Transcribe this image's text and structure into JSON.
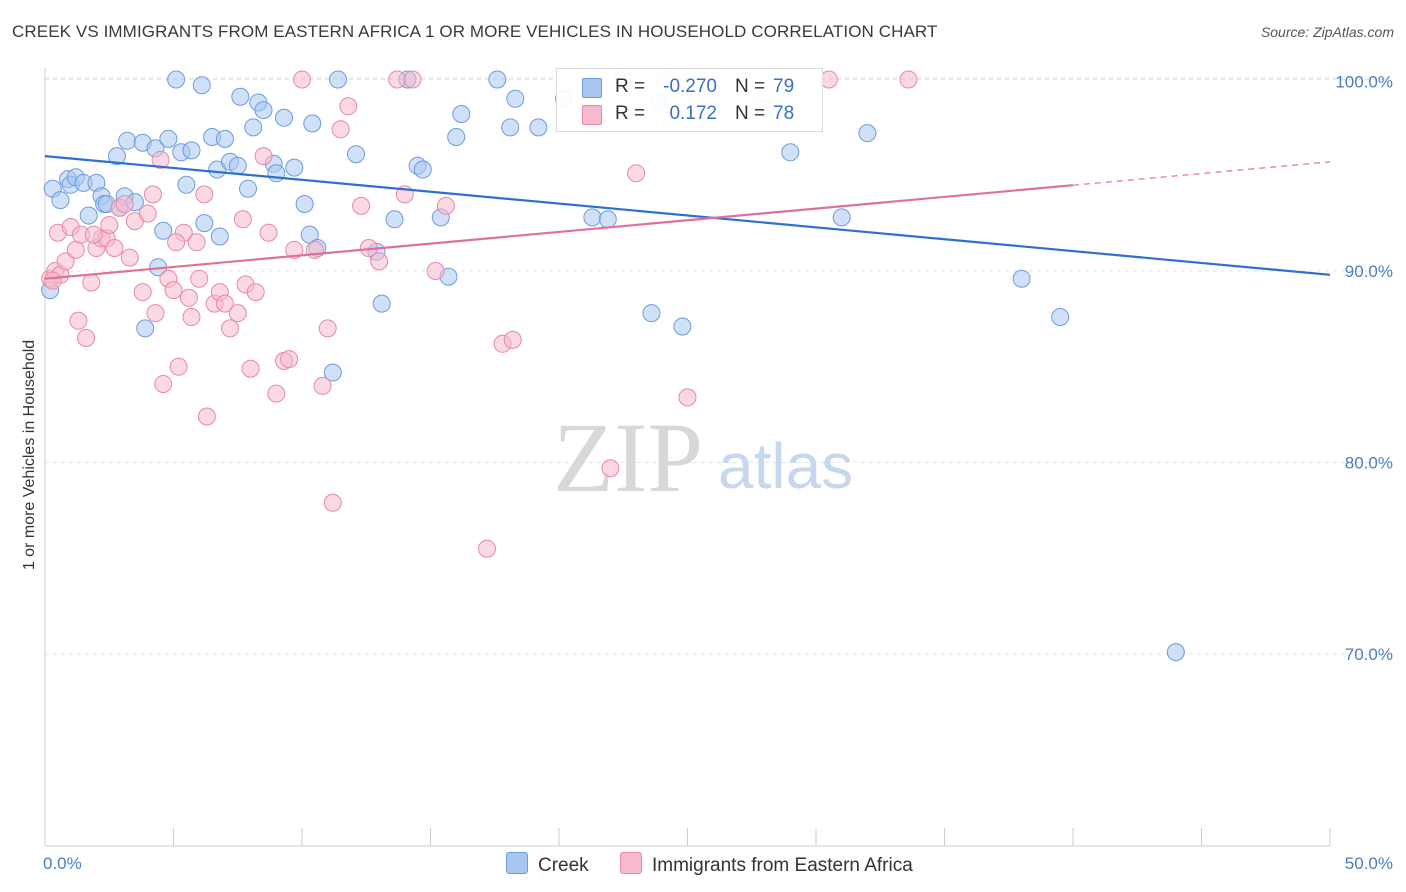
{
  "title": "CREEK VS IMMIGRANTS FROM EASTERN AFRICA 1 OR MORE VEHICLES IN HOUSEHOLD CORRELATION CHART",
  "source": "Source: ZipAtlas.com",
  "watermark": {
    "zip": "ZIP",
    "atlas": "atlas"
  },
  "legend": {
    "creek": {
      "r_label": "R =",
      "r_value": "-0.270",
      "n_label": "N =",
      "n_value": "79"
    },
    "eastern_africa": {
      "r_label": "R =",
      "r_value": "0.172",
      "n_label": "N =",
      "n_value": "78"
    }
  },
  "bottom_legend": {
    "creek": "Creek",
    "eastern_africa": "Immigrants from Eastern Africa"
  },
  "colors": {
    "creek_fill": "#a9c6f0",
    "creek_stroke": "#6d9ce0",
    "creek_line": "#2e6fd1",
    "ea_fill": "#f7b9cd",
    "ea_stroke": "#e889a7",
    "ea_line": "#e0709a",
    "axis_text": "#4a7cc9",
    "grid": "#e3e3e3"
  },
  "chart_data": {
    "type": "scatter",
    "title": "CREEK VS IMMIGRANTS FROM EASTERN AFRICA 1 OR MORE VEHICLES IN HOUSEHOLD CORRELATION CHART",
    "xlabel": "",
    "ylabel": "1 or more Vehicles in Household",
    "xlim": [
      0,
      50
    ],
    "ylim": [
      61,
      101.5
    ],
    "x_tick_labels": [
      "0.0%",
      "50.0%"
    ],
    "y_ticks": [
      70,
      80,
      90,
      100
    ],
    "y_tick_labels": [
      "70.0%",
      "80.0%",
      "90.0%",
      "100.0%"
    ],
    "grid": true,
    "legend_position": "top-center",
    "series": [
      {
        "name": "Creek",
        "color": "#a9c6f0",
        "trend": {
          "x": [
            0,
            50
          ],
          "y": [
            96.0,
            89.8
          ],
          "dashed_from": null
        },
        "points": [
          [
            0.3,
            94.3
          ],
          [
            0.6,
            93.7
          ],
          [
            0.9,
            94.8
          ],
          [
            1.0,
            94.5
          ],
          [
            1.2,
            94.9
          ],
          [
            1.5,
            94.6
          ],
          [
            1.7,
            92.9
          ],
          [
            2.0,
            94.6
          ],
          [
            2.2,
            93.9
          ],
          [
            2.3,
            93.5
          ],
          [
            2.4,
            93.5
          ],
          [
            2.8,
            96.0
          ],
          [
            2.9,
            93.3
          ],
          [
            3.1,
            93.9
          ],
          [
            3.2,
            96.8
          ],
          [
            3.5,
            93.6
          ],
          [
            3.8,
            96.7
          ],
          [
            3.9,
            87.0
          ],
          [
            4.3,
            96.4
          ],
          [
            4.4,
            90.2
          ],
          [
            4.6,
            92.1
          ],
          [
            4.8,
            96.9
          ],
          [
            5.1,
            100.0
          ],
          [
            5.3,
            96.2
          ],
          [
            5.5,
            94.5
          ],
          [
            5.7,
            96.3
          ],
          [
            6.1,
            99.7
          ],
          [
            6.2,
            92.5
          ],
          [
            6.5,
            97.0
          ],
          [
            6.7,
            95.3
          ],
          [
            6.8,
            91.8
          ],
          [
            7.0,
            96.9
          ],
          [
            7.2,
            95.7
          ],
          [
            7.5,
            95.5
          ],
          [
            7.6,
            99.1
          ],
          [
            7.9,
            94.3
          ],
          [
            8.1,
            97.5
          ],
          [
            8.3,
            98.8
          ],
          [
            8.5,
            98.4
          ],
          [
            8.9,
            95.6
          ],
          [
            9.0,
            95.1
          ],
          [
            9.3,
            98.0
          ],
          [
            9.7,
            95.4
          ],
          [
            10.1,
            93.5
          ],
          [
            10.3,
            91.9
          ],
          [
            10.4,
            97.7
          ],
          [
            10.6,
            91.2
          ],
          [
            11.2,
            84.7
          ],
          [
            11.4,
            100.0
          ],
          [
            12.1,
            96.1
          ],
          [
            12.9,
            91.0
          ],
          [
            13.1,
            88.3
          ],
          [
            13.6,
            92.7
          ],
          [
            14.1,
            100.0
          ],
          [
            14.5,
            95.5
          ],
          [
            14.7,
            95.3
          ],
          [
            15.4,
            92.8
          ],
          [
            15.7,
            89.7
          ],
          [
            16.0,
            97.0
          ],
          [
            16.2,
            98.2
          ],
          [
            17.6,
            100.0
          ],
          [
            18.1,
            97.5
          ],
          [
            18.3,
            99.0
          ],
          [
            19.2,
            97.5
          ],
          [
            20.2,
            99.0
          ],
          [
            21.3,
            92.8
          ],
          [
            21.9,
            92.7
          ],
          [
            22.5,
            100.0
          ],
          [
            23.6,
            87.8
          ],
          [
            23.9,
            98.8
          ],
          [
            24.8,
            87.1
          ],
          [
            28.0,
            98.5
          ],
          [
            29.0,
            96.2
          ],
          [
            31.0,
            92.8
          ],
          [
            32.0,
            97.2
          ],
          [
            38.0,
            89.6
          ],
          [
            39.5,
            87.6
          ],
          [
            44.0,
            70.1
          ],
          [
            0.2,
            89.0
          ]
        ]
      },
      {
        "name": "Immigrants from Eastern Africa",
        "color": "#f7b9cd",
        "trend": {
          "x": [
            0,
            50
          ],
          "y": [
            89.6,
            95.7
          ],
          "dashed_from": 40
        },
        "points": [
          [
            0.2,
            89.6
          ],
          [
            0.4,
            90.0
          ],
          [
            0.5,
            92.0
          ],
          [
            0.6,
            89.8
          ],
          [
            0.8,
            90.5
          ],
          [
            1.0,
            92.3
          ],
          [
            1.2,
            91.1
          ],
          [
            1.3,
            87.4
          ],
          [
            1.4,
            91.9
          ],
          [
            1.6,
            86.5
          ],
          [
            1.8,
            89.4
          ],
          [
            2.0,
            91.2
          ],
          [
            2.2,
            91.7
          ],
          [
            2.4,
            91.7
          ],
          [
            2.5,
            92.4
          ],
          [
            2.7,
            91.2
          ],
          [
            2.9,
            93.3
          ],
          [
            3.1,
            93.5
          ],
          [
            3.3,
            90.7
          ],
          [
            3.5,
            92.6
          ],
          [
            3.8,
            88.9
          ],
          [
            4.0,
            93.0
          ],
          [
            4.2,
            94.0
          ],
          [
            4.3,
            87.8
          ],
          [
            4.5,
            95.8
          ],
          [
            4.6,
            84.1
          ],
          [
            4.8,
            89.6
          ],
          [
            5.0,
            89.0
          ],
          [
            5.2,
            85.0
          ],
          [
            5.4,
            92.0
          ],
          [
            5.6,
            88.6
          ],
          [
            5.7,
            87.6
          ],
          [
            5.9,
            91.5
          ],
          [
            6.0,
            89.6
          ],
          [
            6.2,
            94.0
          ],
          [
            6.3,
            82.4
          ],
          [
            6.6,
            88.3
          ],
          [
            6.8,
            88.9
          ],
          [
            7.0,
            88.3
          ],
          [
            7.2,
            87.0
          ],
          [
            7.5,
            87.8
          ],
          [
            7.7,
            92.7
          ],
          [
            7.8,
            89.3
          ],
          [
            8.0,
            84.9
          ],
          [
            8.2,
            88.9
          ],
          [
            8.5,
            96.0
          ],
          [
            8.7,
            92.0
          ],
          [
            9.0,
            83.6
          ],
          [
            9.3,
            85.3
          ],
          [
            9.5,
            85.4
          ],
          [
            9.7,
            91.1
          ],
          [
            10.0,
            100.0
          ],
          [
            10.5,
            91.1
          ],
          [
            10.8,
            84.0
          ],
          [
            11.0,
            87.0
          ],
          [
            11.2,
            77.9
          ],
          [
            11.5,
            97.4
          ],
          [
            11.8,
            98.6
          ],
          [
            12.3,
            93.4
          ],
          [
            12.6,
            91.2
          ],
          [
            13.0,
            90.5
          ],
          [
            13.7,
            100.0
          ],
          [
            14.0,
            94.0
          ],
          [
            14.3,
            100.0
          ],
          [
            15.2,
            90.0
          ],
          [
            15.6,
            93.4
          ],
          [
            17.2,
            75.5
          ],
          [
            17.8,
            86.2
          ],
          [
            18.2,
            86.4
          ],
          [
            22.0,
            79.7
          ],
          [
            23.0,
            95.1
          ],
          [
            24.1,
            100.0
          ],
          [
            25.0,
            83.4
          ],
          [
            30.5,
            100.0
          ],
          [
            33.6,
            100.0
          ],
          [
            0.3,
            89.5
          ],
          [
            1.9,
            91.9
          ],
          [
            5.1,
            91.5
          ]
        ]
      }
    ]
  }
}
